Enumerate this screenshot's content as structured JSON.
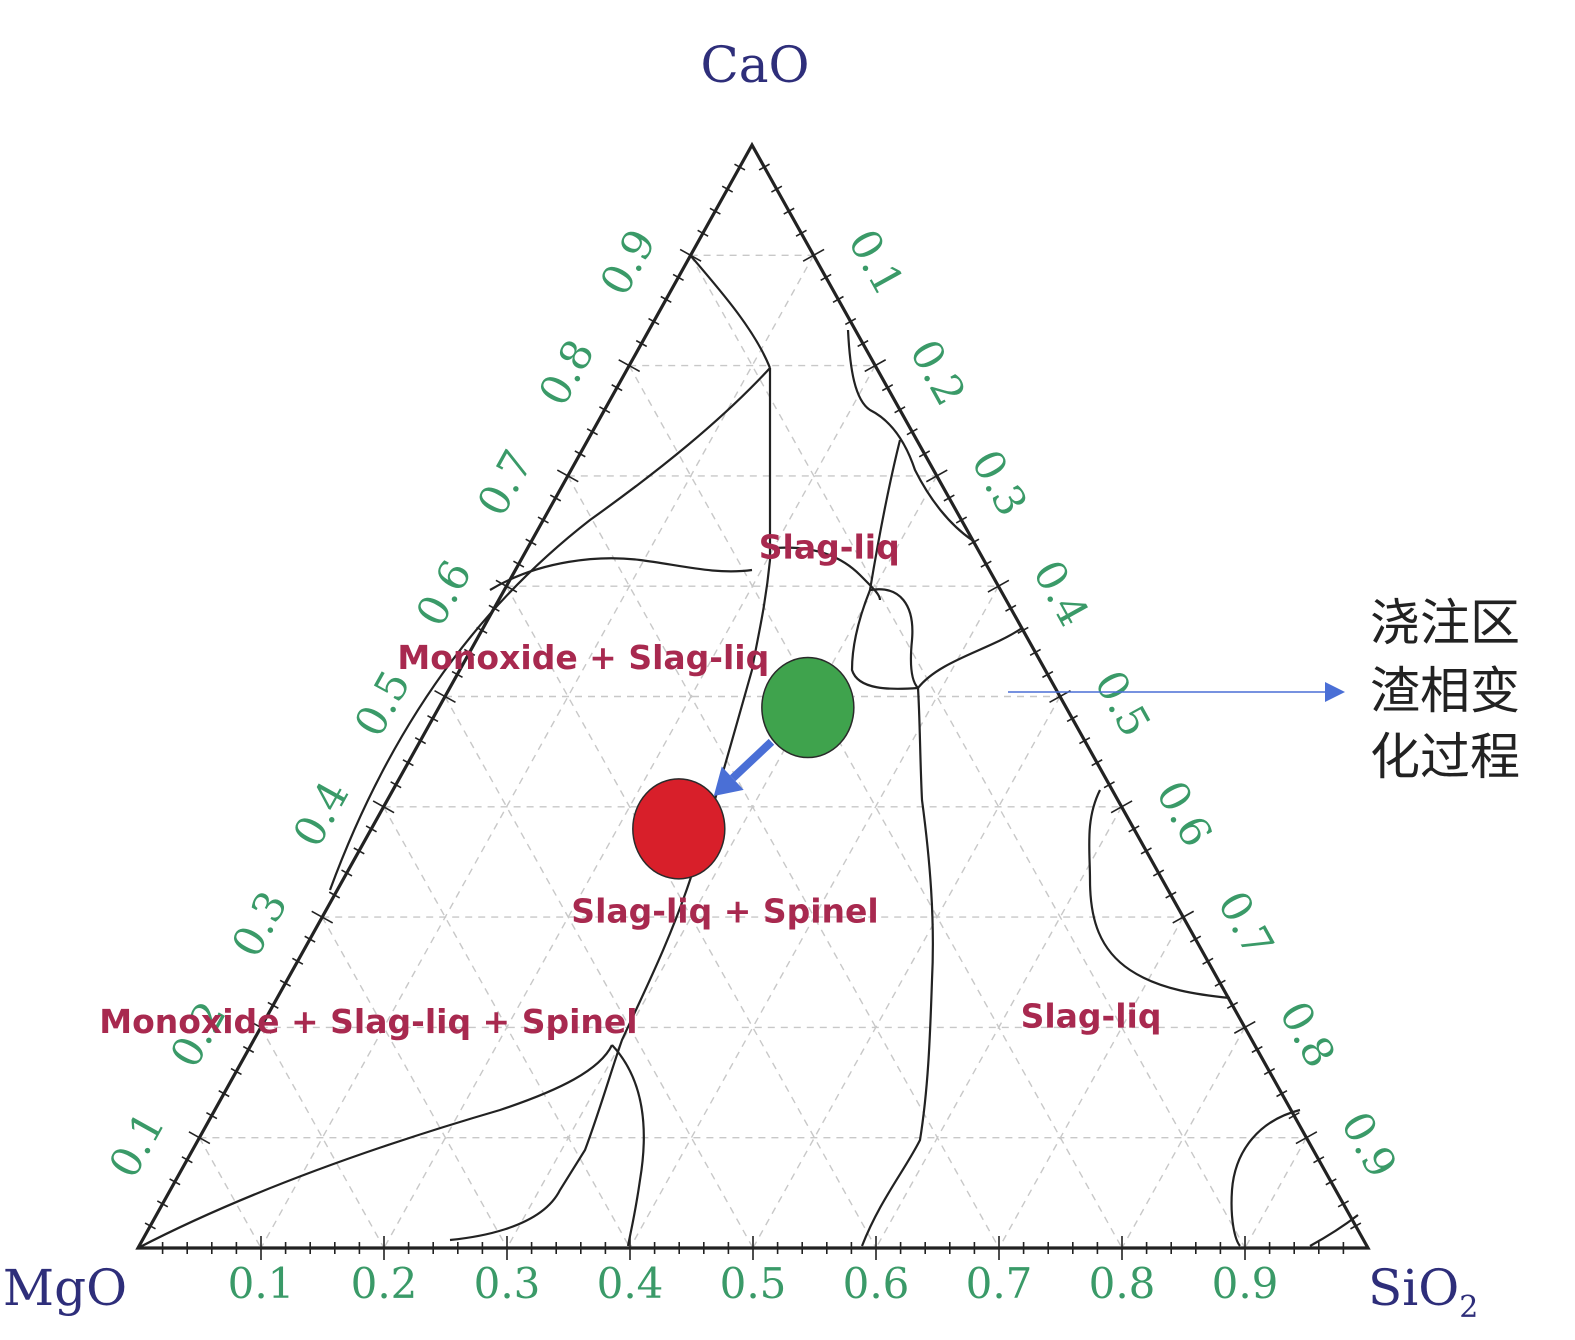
{
  "chart_data": {
    "type": "ternary",
    "vertices": {
      "top": "CaO",
      "left": "MgO",
      "right_main": "SiO",
      "right_sub": "2"
    },
    "ticks": [
      "0.1",
      "0.2",
      "0.3",
      "0.4",
      "0.5",
      "0.6",
      "0.7",
      "0.8",
      "0.9"
    ],
    "grid": true,
    "regions": [
      {
        "label": "Slag-liq",
        "MgO": 0.125,
        "SiO2": 0.25
      },
      {
        "label": "Monoxide + Slag-liq",
        "MgO": 0.375,
        "SiO2": 0.1
      },
      {
        "label": "Slag-liq + Spinel",
        "MgO": 0.375,
        "SiO2": 0.33
      },
      {
        "label": "Monoxide + Slag-liq + Spinel",
        "MgO": 0.715,
        "SiO2": 0.09
      },
      {
        "label": "Slag-liq",
        "MgO": 0.125,
        "SiO2": 0.675
      }
    ],
    "points": [
      {
        "name": "green",
        "color": "#3fa34d",
        "CaO": 0.49,
        "MgO": 0.21,
        "SiO2": 0.3
      },
      {
        "name": "red",
        "color": "#d81f2a",
        "CaO": 0.38,
        "MgO": 0.37,
        "SiO2": 0.25
      }
    ],
    "arrow": {
      "from": "green",
      "to": "red",
      "color": "#4a6fd6"
    },
    "annotation": {
      "lines": [
        "浇注区",
        "渣相变",
        "化过程"
      ],
      "pointer_color": "#4a6fd6"
    },
    "colors": {
      "vertex_label": "#2e2e7a",
      "tick_label": "#3a9a68",
      "region_label": "#a8294f",
      "axis": "#222222",
      "grid": "#c8c8c8"
    }
  }
}
